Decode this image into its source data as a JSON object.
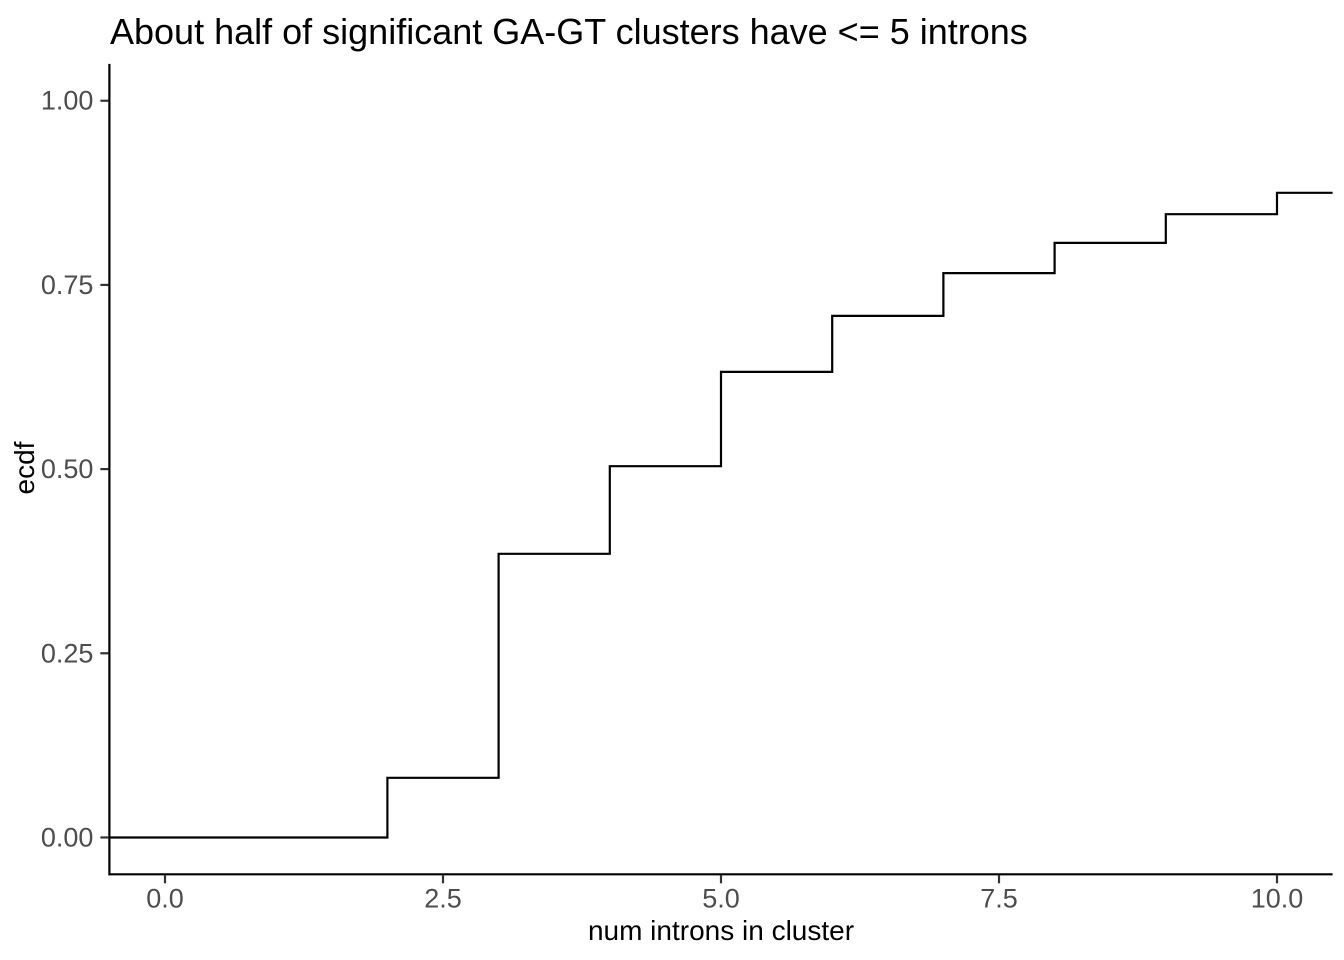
{
  "chart_data": {
    "type": "line",
    "subtype": "ecdf-step",
    "title": "About half of significant GA-GT clusters have <= 5 introns",
    "xlabel": "num introns in cluster",
    "ylabel": "ecdf",
    "grid": "off",
    "legend": "none",
    "xlim": [
      -0.5,
      10.5
    ],
    "ylim": [
      -0.05,
      1.05
    ],
    "x_ticks": [
      {
        "value": 0.0,
        "label": "0.0"
      },
      {
        "value": 2.5,
        "label": "2.5"
      },
      {
        "value": 5.0,
        "label": "5.0"
      },
      {
        "value": 7.5,
        "label": "7.5"
      },
      {
        "value": 10.0,
        "label": "10.0"
      }
    ],
    "y_ticks": [
      {
        "value": 0.0,
        "label": "0.00"
      },
      {
        "value": 0.25,
        "label": "0.25"
      },
      {
        "value": 0.5,
        "label": "0.50"
      },
      {
        "value": 0.75,
        "label": "0.75"
      },
      {
        "value": 1.0,
        "label": "1.00"
      }
    ],
    "series": [
      {
        "name": "ecdf",
        "start_y": 0.0,
        "steps": [
          {
            "x": 2,
            "ecdf": 0.081
          },
          {
            "x": 3,
            "ecdf": 0.385
          },
          {
            "x": 4,
            "ecdf": 0.504
          },
          {
            "x": 5,
            "ecdf": 0.632
          },
          {
            "x": 6,
            "ecdf": 0.708
          },
          {
            "x": 7,
            "ecdf": 0.766
          },
          {
            "x": 8,
            "ecdf": 0.807
          },
          {
            "x": 9,
            "ecdf": 0.846
          },
          {
            "x": 10,
            "ecdf": 0.875
          }
        ]
      }
    ],
    "colors": {
      "line": "#000000",
      "axis": "#000000",
      "tick": "#333333",
      "tick_label": "#4d4d4d",
      "title": "#000000",
      "background": "#ffffff"
    }
  }
}
